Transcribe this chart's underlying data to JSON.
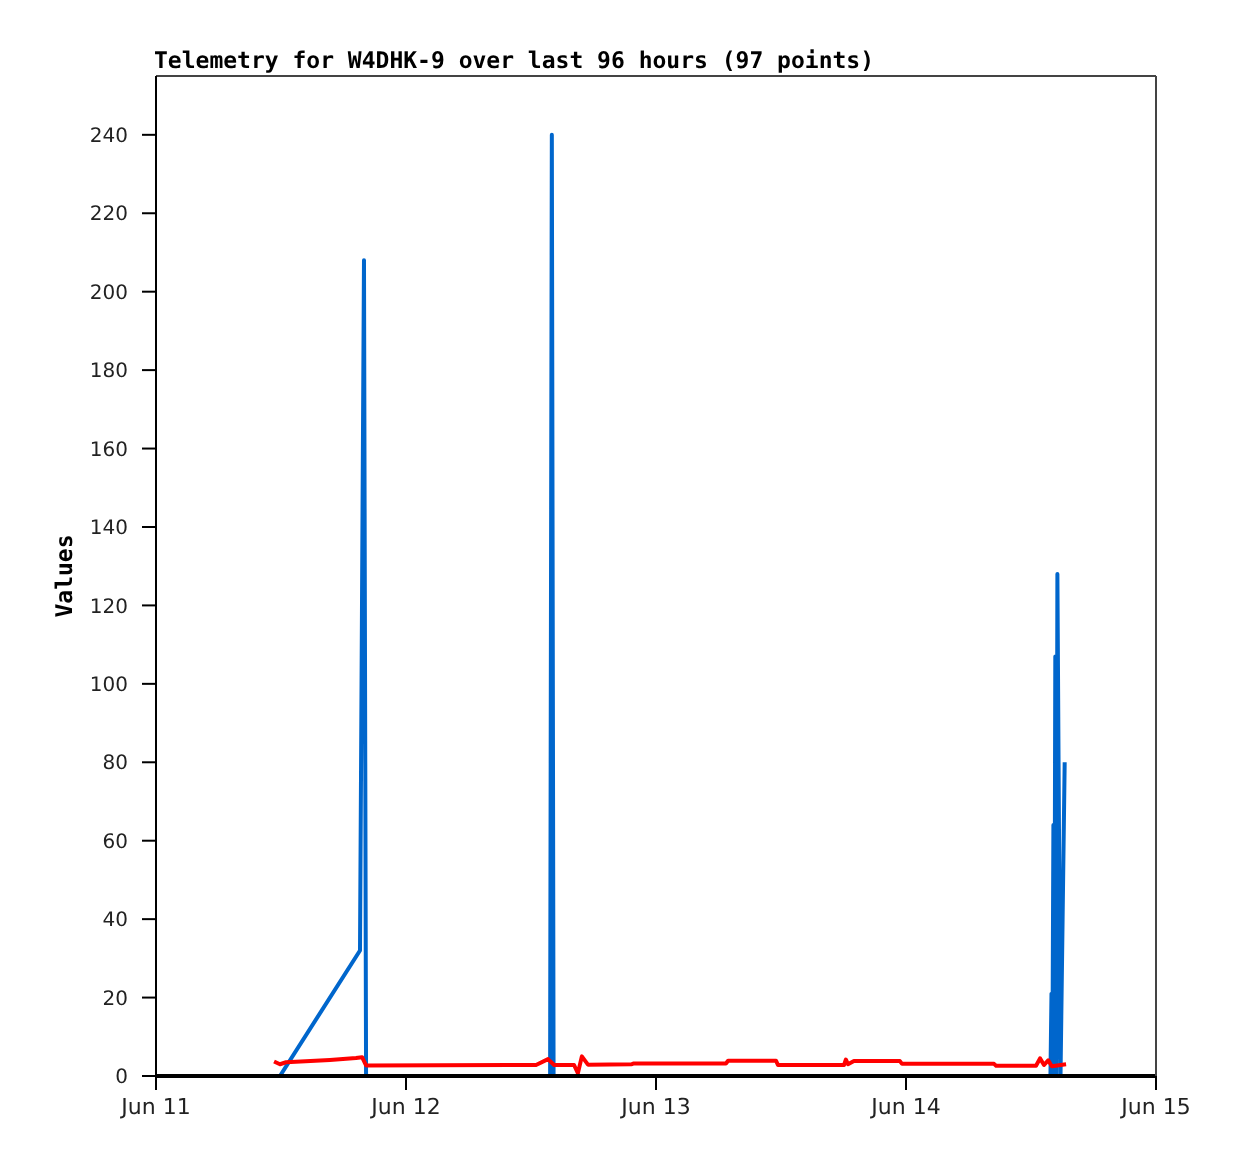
{
  "chart_data": {
    "type": "line",
    "title": "Telemetry for W4DHK-9 over last 96 hours (97 points)",
    "ylabel": "Values",
    "xlim": [
      "--06-11",
      "--06-15"
    ],
    "xticks": [
      {
        "value": "--06-11",
        "label": "Jun 11"
      },
      {
        "value": "--06-12",
        "label": "Jun 12"
      },
      {
        "value": "--06-13",
        "label": "Jun 13"
      },
      {
        "value": "--06-14",
        "label": "Jun 14"
      },
      {
        "value": "--06-15",
        "label": "Jun 15"
      }
    ],
    "ylim": [
      0,
      255
    ],
    "yticks": [
      0,
      20,
      40,
      60,
      80,
      100,
      120,
      140,
      160,
      180,
      200,
      220,
      240
    ],
    "marker": "none",
    "line_style": "solid",
    "series": [
      {
        "color": "#0066cc",
        "x": [
          "--06-11T11:54",
          "--06-11T19:35",
          "--06-11T19:58",
          "--06-11T20:10",
          "--06-12T13:50",
          "--06-12T14:00",
          "--06-12T14:10",
          "--06-14T13:52",
          "--06-14T13:58",
          "--06-14T14:03",
          "--06-14T14:09",
          "--06-14T14:14",
          "--06-14T14:20",
          "--06-14T14:26",
          "--06-14T14:32",
          "--06-14T14:50",
          "--06-14T15:02",
          "--06-14T15:14"
        ],
        "values": [
          0,
          32,
          208,
          0,
          0,
          240,
          0,
          0,
          21,
          0,
          64,
          0,
          107,
          0,
          128,
          0,
          40,
          80
        ]
      },
      {
        "color": "#ff0000",
        "x": [
          "--06-11T11:20",
          "--06-11T11:54",
          "--06-11T12:29",
          "--06-11T16:42",
          "--06-11T19:12",
          "--06-11T19:47",
          "--06-11T20:10",
          "--06-12T12:29",
          "--06-12T13:38",
          "--06-12T14:13",
          "--06-12T16:08",
          "--06-12T16:30",
          "--06-12T16:53",
          "--06-12T17:28",
          "--06-12T21:41",
          "--06-12T21:53",
          "--06-13T06:43",
          "--06-13T06:55",
          "--06-13T11:31",
          "--06-13T11:43",
          "--06-13T18:03",
          "--06-13T18:14",
          "--06-13T18:26",
          "--06-13T19:00",
          "--06-13T23:25",
          "--06-13T23:37",
          "--06-14T08:27",
          "--06-14T08:39",
          "--06-14T12:29",
          "--06-14T12:52",
          "--06-14T13:15",
          "--06-14T13:39",
          "--06-14T14:00",
          "--06-14T15:22"
        ],
        "values": [
          3.7,
          3.0,
          3.5,
          4.1,
          4.6,
          4.8,
          2.7,
          2.8,
          4.3,
          2.8,
          2.8,
          0.7,
          5.0,
          2.9,
          3.0,
          3.2,
          3.2,
          3.9,
          3.9,
          2.8,
          2.8,
          4.2,
          3.0,
          3.8,
          3.8,
          3.1,
          3.1,
          2.6,
          2.6,
          4.5,
          2.8,
          4.0,
          2.5,
          3.0
        ]
      }
    ]
  }
}
